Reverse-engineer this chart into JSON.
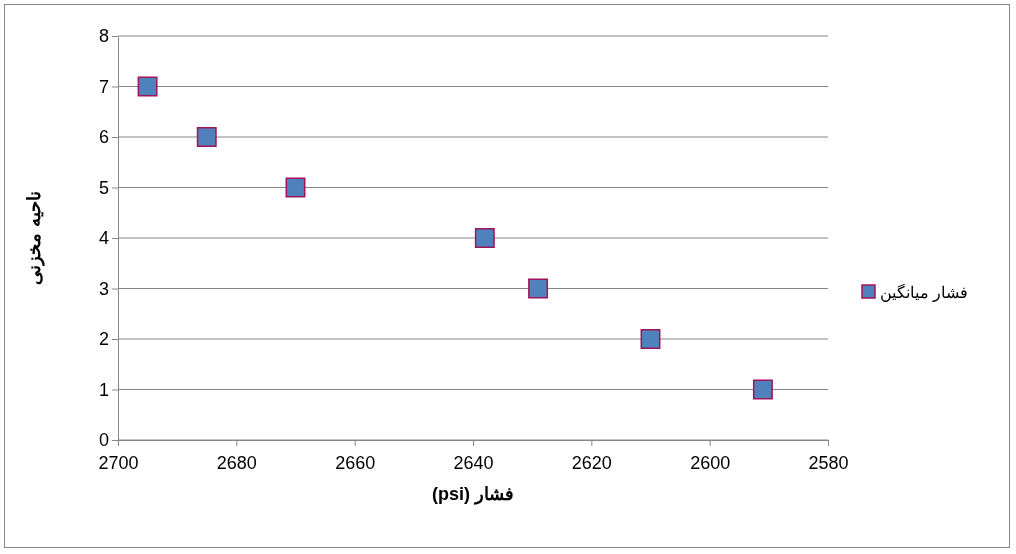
{
  "chart_data": {
    "type": "scatter",
    "xlabel": "فشار (psi)",
    "ylabel": "ناحیه مخزنی",
    "x": [
      2695,
      2685,
      2670,
      2638,
      2629,
      2610,
      2591
    ],
    "series": [
      {
        "name": "فشار میانگین",
        "color": "#4f81bd",
        "values": [
          7,
          6,
          5,
          4,
          3,
          2,
          1
        ]
      }
    ],
    "xlim": [
      2700,
      2580
    ],
    "xticks": [
      2700,
      2680,
      2660,
      2640,
      2620,
      2600,
      2580
    ],
    "ylim": [
      0,
      8
    ],
    "yticks": [
      0,
      1,
      2,
      3,
      4,
      5,
      6,
      7,
      8
    ],
    "grid": "y",
    "legend": "right",
    "marker": "square"
  }
}
